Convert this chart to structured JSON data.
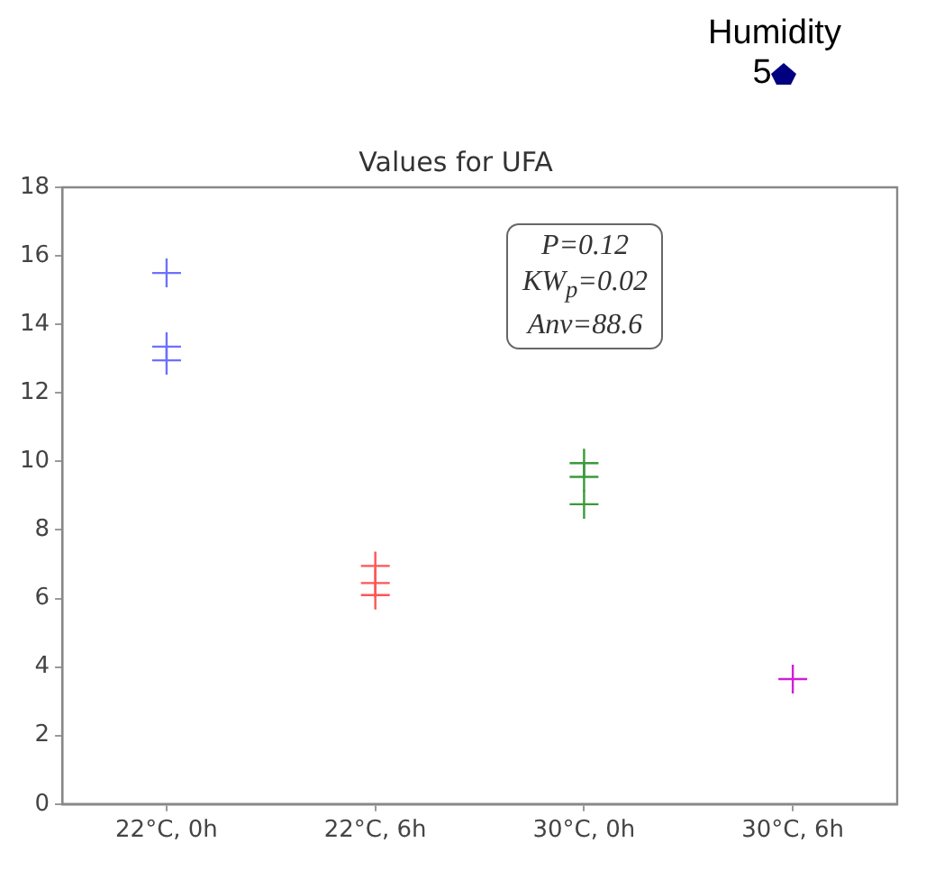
{
  "chart_data": {
    "type": "scatter",
    "title": "Values for UFA",
    "categories": [
      "22°C, 0h",
      "22°C, 6h",
      "30°C, 0h",
      "30°C, 6h"
    ],
    "series": [
      {
        "color": "#6f6fff",
        "x": [
          "22°C, 0h",
          "22°C, 0h",
          "22°C, 0h"
        ],
        "values": [
          15.5,
          13.35,
          12.95
        ]
      },
      {
        "color": "#ff5555",
        "x": [
          "22°C, 6h",
          "22°C, 6h",
          "22°C, 6h"
        ],
        "values": [
          6.95,
          6.45,
          6.1
        ]
      },
      {
        "color": "#3a9a3a",
        "x": [
          "30°C, 0h",
          "30°C, 0h",
          "30°C, 0h"
        ],
        "values": [
          9.95,
          9.55,
          8.75
        ]
      },
      {
        "color": "#d020d0",
        "x": [
          "30°C, 6h"
        ],
        "values": [
          3.65
        ]
      }
    ],
    "ylim": [
      0,
      18
    ],
    "yticks": [
      0,
      2,
      4,
      6,
      8,
      10,
      12,
      14,
      16,
      18
    ],
    "grid": false,
    "legend": false,
    "marker": "cross",
    "annotations": [
      "Humidity",
      "5",
      "P=0.12",
      "KW$_{p}$=0.02",
      "Anv=88.6"
    ]
  }
}
